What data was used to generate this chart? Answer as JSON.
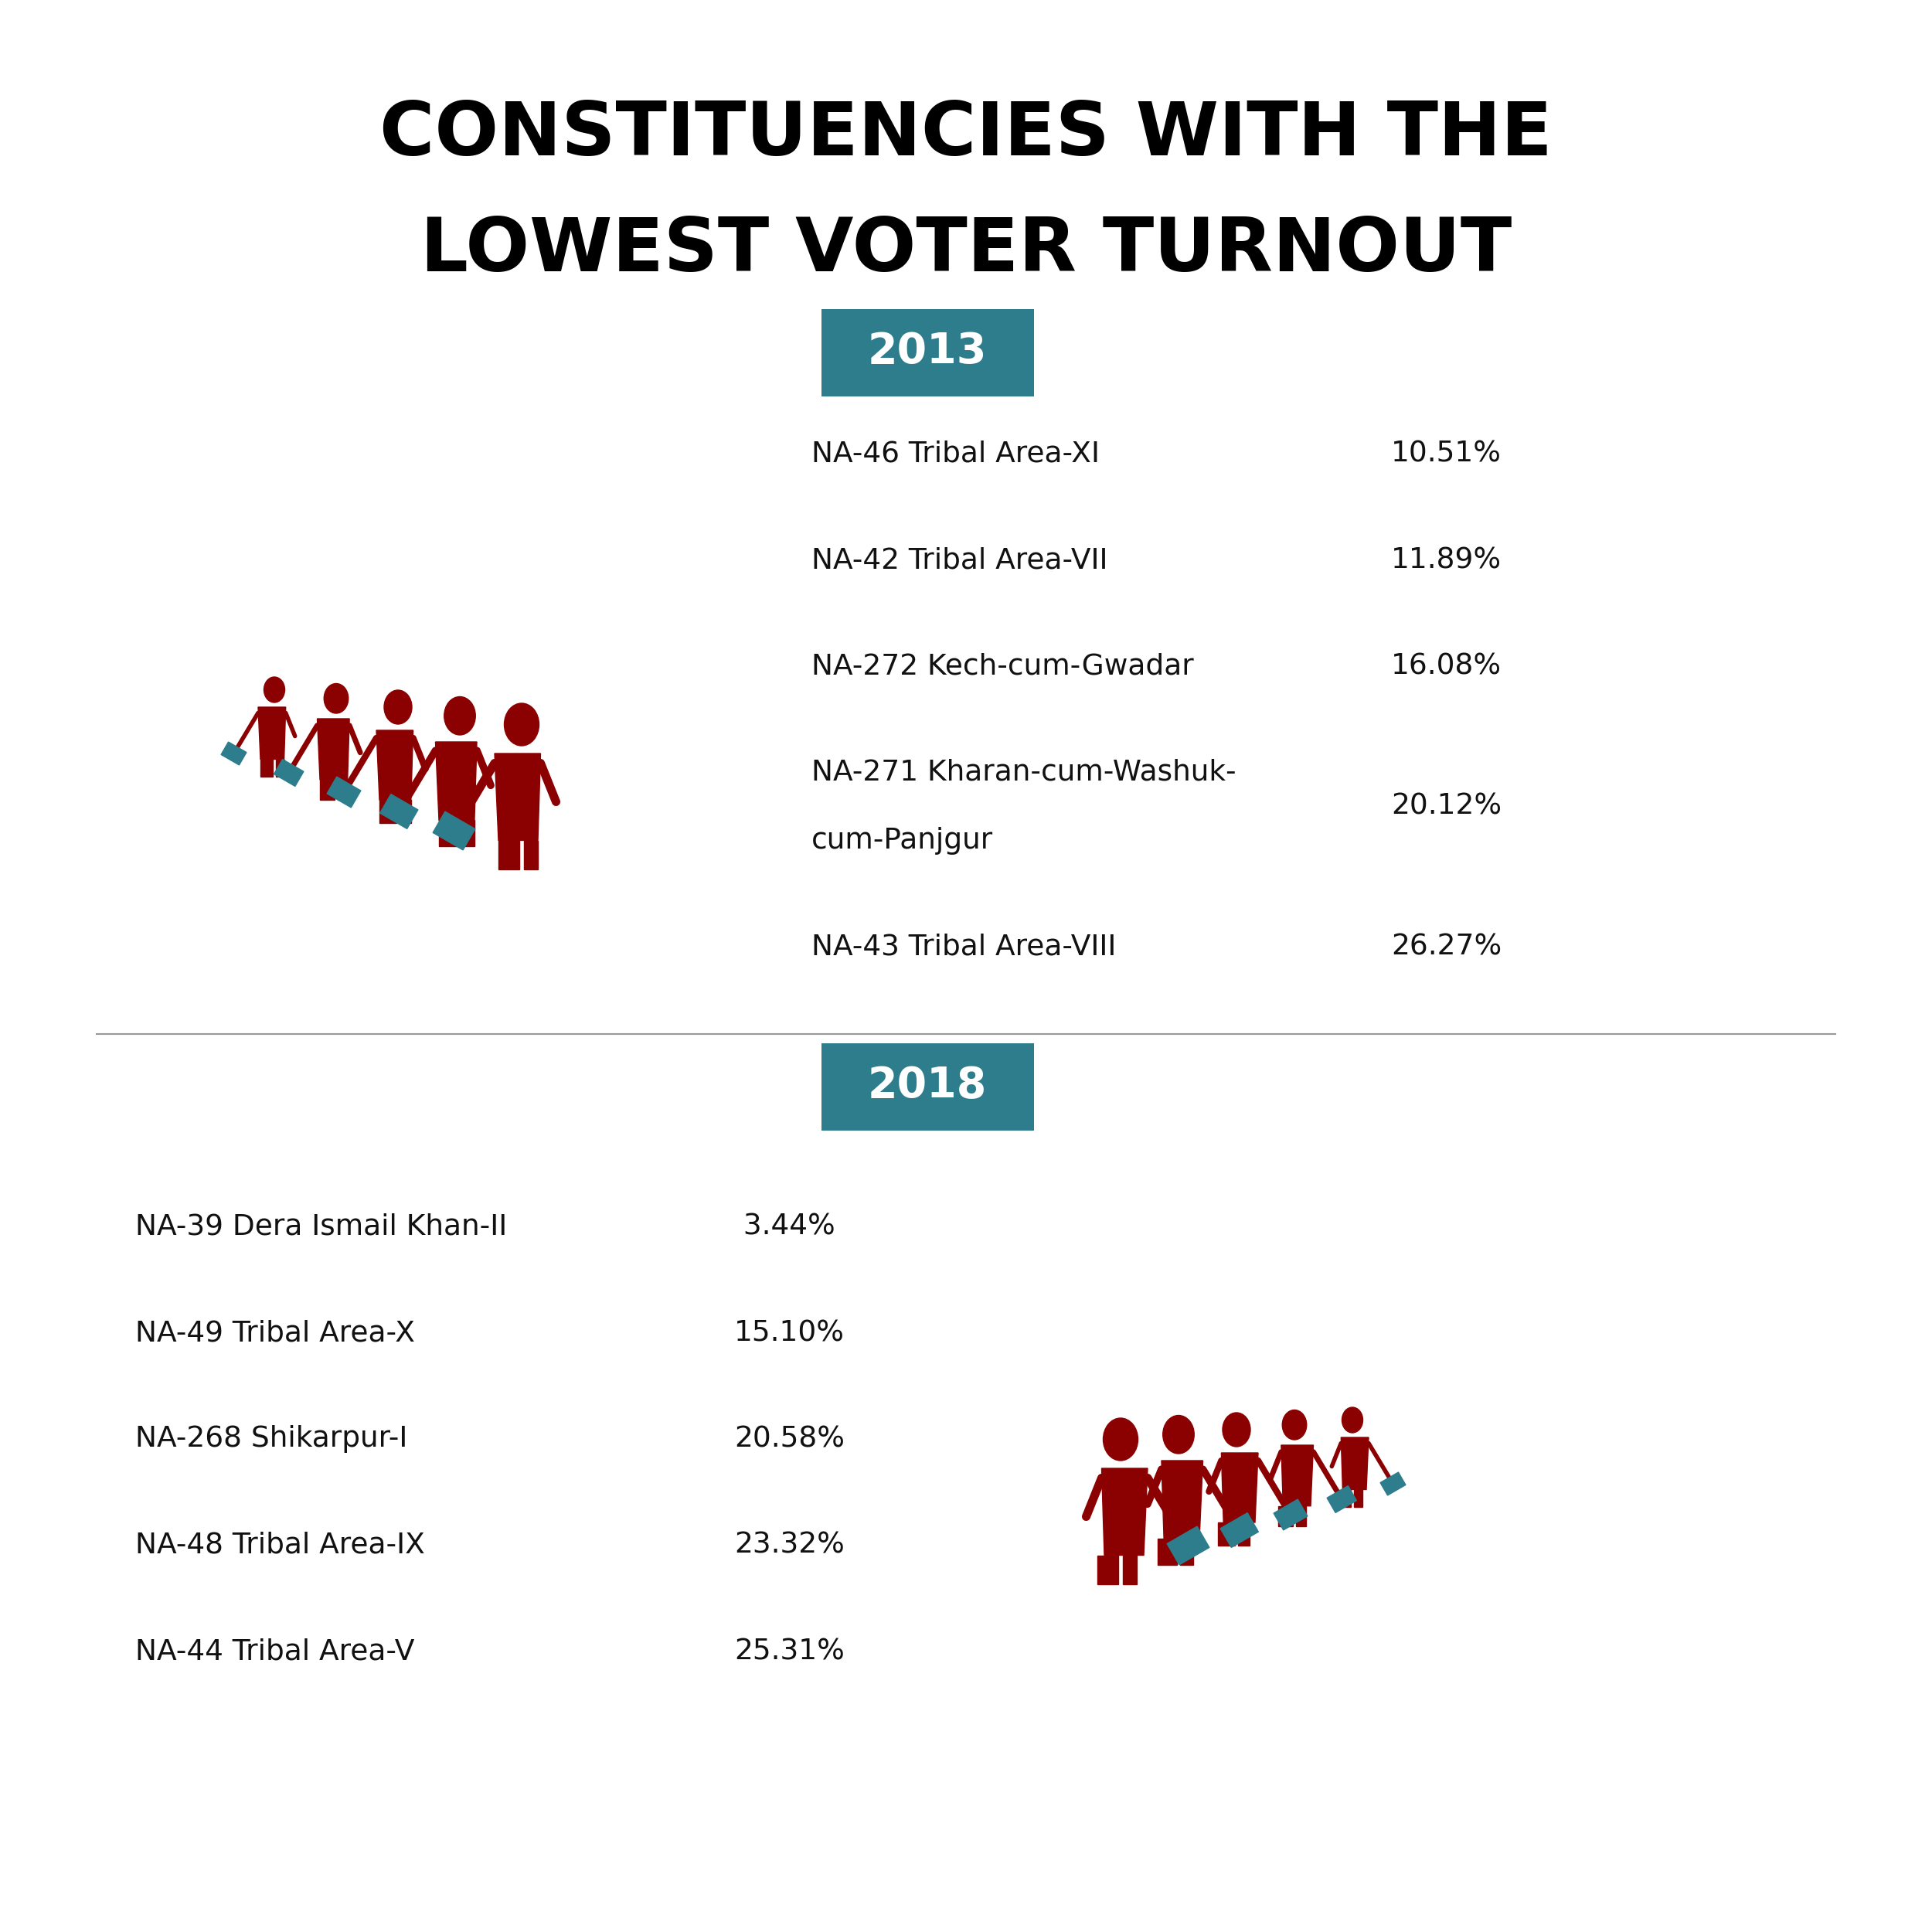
{
  "title_line1": "CONSTITUENCIES WITH THE",
  "title_line2": "LOWEST VOTER TURNOUT",
  "bg_color": "#ffffff",
  "title_color": "#000000",
  "title_fontsize": 70,
  "section_2013": {
    "year": "2013",
    "year_bg": "#2e7d8c",
    "year_text_color": "#ffffff",
    "items": [
      {
        "label": "NA-46 Tribal Area-XI",
        "value": "10.51%"
      },
      {
        "label": "NA-42 Tribal Area-VII",
        "value": "11.89%"
      },
      {
        "label": "NA-272 Kech-cum-Gwadar",
        "value": "16.08%"
      },
      {
        "label_line1": "NA-271 Kharan-cum-Washuk-",
        "label_line2": "cum-Panjgur",
        "value": "20.12%",
        "multiline": true
      },
      {
        "label": "NA-43 Tribal Area-VIII",
        "value": "26.27%"
      }
    ]
  },
  "section_2018": {
    "year": "2018",
    "year_bg": "#2e7d8c",
    "year_text_color": "#ffffff",
    "items": [
      {
        "label": "NA-39 Dera Ismail Khan-II",
        "value": " 3.44%"
      },
      {
        "label": "NA-49 Tribal Area-X",
        "value": "15.10%"
      },
      {
        "label": "NA-268 Shikarpur-I",
        "value": "20.58%"
      },
      {
        "label": "NA-48 Tribal Area-IX",
        "value": "23.32%"
      },
      {
        "label": "NA-44 Tribal Area-V",
        "value": "25.31%"
      }
    ]
  },
  "figure_color": "#8b0000",
  "briefcase_color": "#2e7d8c",
  "divider_color": "#999999"
}
